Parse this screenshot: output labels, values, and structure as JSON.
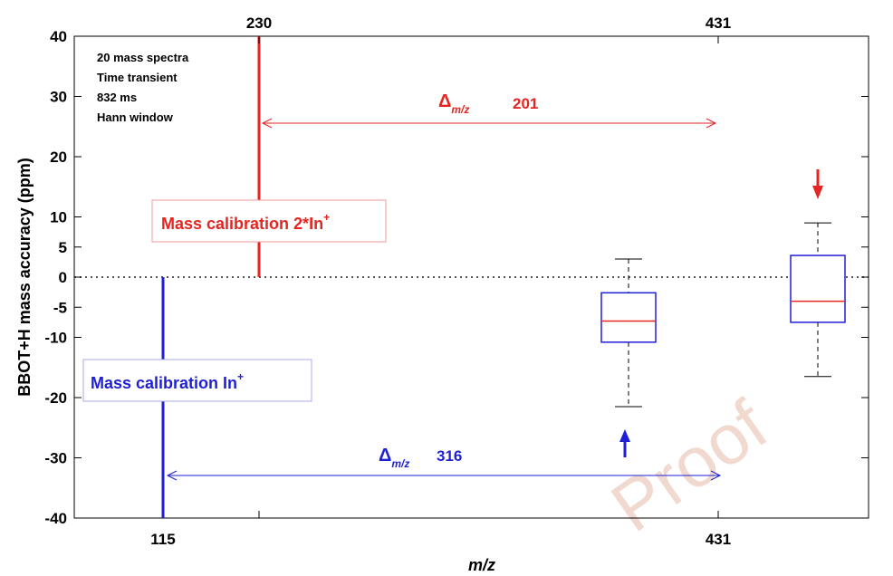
{
  "chart_data": {
    "type": "box",
    "xlabel": "m/z",
    "ylabel": "BBOT+H mass accuracy (ppm)",
    "ylim": [
      -40,
      40
    ],
    "yticks": [
      "40",
      "30",
      "20",
      "10",
      "5",
      "0",
      "-5",
      "-10",
      "-20",
      "-30",
      "-40"
    ],
    "top_ticks": [
      "230",
      "431"
    ],
    "bottom_ticks": [
      "115",
      "431"
    ],
    "zero_line": true,
    "annotations": {
      "settings": [
        "20 mass spectra",
        "Time transient",
        "832 ms",
        "Hann window"
      ],
      "calibration_2in": {
        "label_main": "Mass calibration 2*In",
        "label_sup": "+",
        "color": "#e52521"
      },
      "calibration_in": {
        "label_main": "Mass calibration In",
        "label_sup": "+",
        "color": "#1f1fd6"
      },
      "delta_201": {
        "symbol": "Δ",
        "subscript": "m/z",
        "value": "201",
        "color": "#e52521"
      },
      "delta_316": {
        "symbol": "Δ",
        "subscript": "m/z",
        "value": "316",
        "color": "#1f1fd6"
      }
    },
    "series": [
      {
        "calibration": "In+",
        "whisker_low": -21.5,
        "q1": -10.8,
        "median": -7.3,
        "q3": -2.6,
        "whisker_high": 3.0,
        "box_color": "#1f1fd6",
        "marker_arrow": "up",
        "arrow_color": "#1f1fd6"
      },
      {
        "calibration": "2*In+",
        "whisker_low": -16.5,
        "q1": -7.5,
        "median": -4.0,
        "q3": 3.6,
        "whisker_high": 9.0,
        "box_color": "#1f1fd6",
        "marker_arrow": "down",
        "arrow_color": "#e52521"
      }
    ],
    "median_color": "#e52521"
  },
  "watermark": "Proof"
}
